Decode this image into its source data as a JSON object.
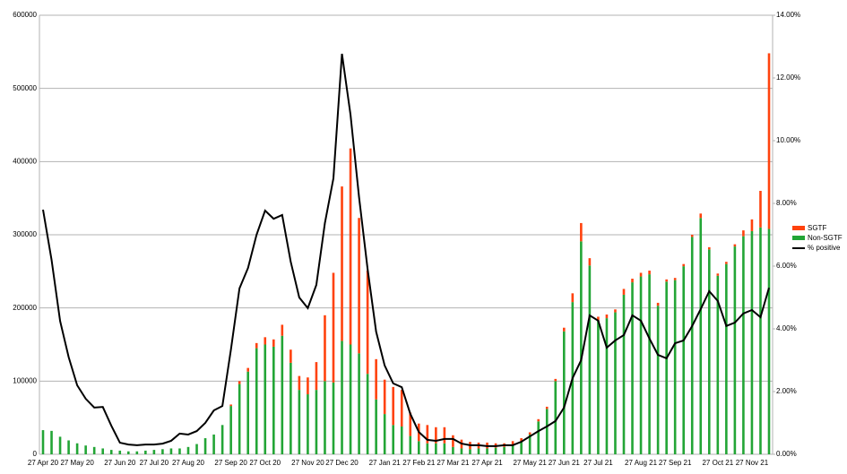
{
  "chart_data": {
    "type": "bar-line",
    "categories": [
      "27 Apr 20",
      null,
      null,
      null,
      "27 May 20",
      null,
      null,
      null,
      null,
      "27 Jun 20",
      null,
      null,
      null,
      "27 Jul 20",
      null,
      null,
      null,
      "27 Aug 20",
      null,
      null,
      null,
      null,
      "27 Sep 20",
      null,
      null,
      null,
      "27 Oct 20",
      null,
      null,
      null,
      null,
      "27 Nov 20",
      null,
      null,
      null,
      "27 Dec 20",
      null,
      null,
      null,
      null,
      "27 Jan 21",
      null,
      null,
      null,
      "27 Feb 21",
      null,
      null,
      null,
      "27 Mar 21",
      null,
      null,
      null,
      "27 Apr 21",
      null,
      null,
      null,
      null,
      "27 May 21",
      null,
      null,
      null,
      "27 Jun 21",
      null,
      null,
      null,
      "27 Jul 21",
      null,
      null,
      null,
      null,
      "27 Aug 21",
      null,
      null,
      null,
      "27 Sep 21",
      null,
      null,
      null,
      null,
      "27 Oct 21",
      null,
      null,
      null,
      "27 Nov 21",
      null,
      null
    ],
    "series": [
      {
        "name": "SGTF",
        "color": "#ff420e",
        "axis": "y",
        "stack": true,
        "values": [
          0,
          0,
          0,
          0,
          0,
          0,
          0,
          0,
          0,
          0,
          0,
          0,
          0,
          0,
          0,
          0,
          0,
          0,
          0,
          0,
          0,
          0,
          2000,
          4000,
          5000,
          7000,
          10000,
          10000,
          15000,
          18000,
          19000,
          23000,
          38000,
          90000,
          150000,
          211000,
          268000,
          185000,
          141000,
          55000,
          47000,
          52000,
          50000,
          32000,
          24000,
          25000,
          22000,
          22000,
          16000,
          12000,
          10000,
          8000,
          8000,
          6000,
          5000,
          5000,
          4000,
          3000,
          3000,
          3000,
          3000,
          5000,
          12000,
          25000,
          10000,
          5000,
          5000,
          4000,
          8000,
          5000,
          5000,
          5000,
          4000,
          3000,
          3000,
          3000,
          3000,
          6000,
          3000,
          3000,
          3000,
          3000,
          8000,
          16000,
          50000,
          240000
        ]
      },
      {
        "name": "Non-SGTF",
        "color": "#23a536",
        "axis": "y",
        "stack": true,
        "values": [
          33000,
          32000,
          24000,
          19000,
          15000,
          12000,
          10000,
          8000,
          6000,
          5000,
          4000,
          4000,
          5000,
          6000,
          7000,
          8000,
          8000,
          10000,
          14000,
          22000,
          27000,
          40000,
          66000,
          96000,
          113000,
          145000,
          150000,
          147000,
          162000,
          125000,
          88000,
          82000,
          88000,
          100000,
          98000,
          155000,
          150000,
          138000,
          110000,
          75000,
          55000,
          40000,
          38000,
          25000,
          18000,
          15000,
          15000,
          15000,
          10000,
          8000,
          7000,
          8000,
          8000,
          9000,
          10000,
          13000,
          18000,
          27000,
          45000,
          62000,
          100000,
          168000,
          208000,
          291000,
          258000,
          183000,
          186000,
          194000,
          218000,
          235000,
          243000,
          246000,
          203000,
          236000,
          238000,
          257000,
          297000,
          323000,
          280000,
          244000,
          260000,
          284000,
          298000,
          305000,
          310000,
          308000
        ]
      },
      {
        "name": "% positive",
        "color": "#000000",
        "axis": "y2",
        "values": [
          7.8,
          6.2,
          4.25,
          3.1,
          2.2,
          1.77,
          1.49,
          1.51,
          0.91,
          0.37,
          0.31,
          0.29,
          0.31,
          0.31,
          0.34,
          0.43,
          0.66,
          0.63,
          0.74,
          1.0,
          1.4,
          1.54,
          3.34,
          5.29,
          5.94,
          7.0,
          7.77,
          7.51,
          7.63,
          6.14,
          5.0,
          4.66,
          5.4,
          7.37,
          8.8,
          12.77,
          10.83,
          8.2,
          5.91,
          3.91,
          2.83,
          2.26,
          2.14,
          1.29,
          0.71,
          0.46,
          0.43,
          0.49,
          0.49,
          0.34,
          0.29,
          0.29,
          0.26,
          0.26,
          0.29,
          0.29,
          0.4,
          0.57,
          0.74,
          0.89,
          1.06,
          1.49,
          2.43,
          3.0,
          4.43,
          4.26,
          3.4,
          3.63,
          3.8,
          4.43,
          4.26,
          3.69,
          3.17,
          3.06,
          3.54,
          3.63,
          4.09,
          4.63,
          5.2,
          4.89,
          4.09,
          4.2,
          4.49,
          4.6,
          4.37,
          5.31
        ]
      }
    ],
    "ylim": [
      0,
      600000
    ],
    "yticks": [
      0,
      100000,
      200000,
      300000,
      400000,
      500000,
      600000
    ],
    "y2lim": [
      0,
      14
    ],
    "y2ticks": [
      {
        "value": 0,
        "label": "0.00%"
      },
      {
        "value": 2,
        "label": "2.00%"
      },
      {
        "value": 4,
        "label": "4.00%"
      },
      {
        "value": 6,
        "label": "6.00%"
      },
      {
        "value": 8,
        "label": "8.00%"
      },
      {
        "value": 10,
        "label": "10.00%"
      },
      {
        "value": 12,
        "label": "12.00%"
      },
      {
        "value": 14,
        "label": "14.00%"
      }
    ],
    "grid": true,
    "legend": "right"
  }
}
